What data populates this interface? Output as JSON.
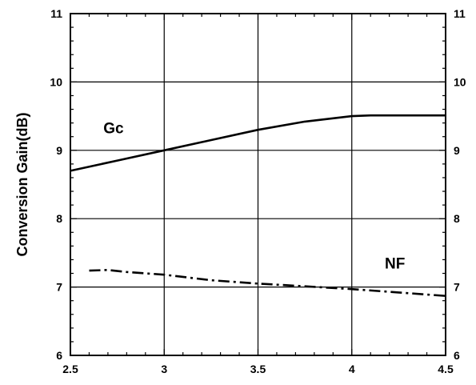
{
  "chart_data": {
    "type": "line",
    "title": "",
    "xlabel": "",
    "ylabel": "Conversion Gain(dB)",
    "xlim": [
      2.5,
      4.5
    ],
    "ylim": [
      6,
      11
    ],
    "xticks": [
      2.5,
      3,
      3.5,
      4,
      4.5
    ],
    "xtick_labels": [
      "2.5",
      "3",
      "3.5",
      "4",
      "4.5"
    ],
    "yticks": [
      6,
      7,
      8,
      9,
      10,
      11
    ],
    "ytick_labels": [
      "6",
      "7",
      "8",
      "9",
      "10",
      "11"
    ],
    "right_ytick_labels": [
      "6",
      "7",
      "8",
      "9",
      "10",
      "11"
    ],
    "grid": true,
    "series": [
      {
        "name": "Gc",
        "line_style": "solid",
        "color": "#000000",
        "x": [
          2.5,
          2.75,
          3.0,
          3.25,
          3.5,
          3.75,
          4.0,
          4.1,
          4.5
        ],
        "y": [
          8.7,
          8.85,
          9.0,
          9.15,
          9.3,
          9.42,
          9.5,
          9.51,
          9.51
        ]
      },
      {
        "name": "NF",
        "line_style": "dash-dot",
        "color": "#000000",
        "x": [
          2.6,
          2.7,
          2.8,
          3.0,
          3.25,
          3.5,
          3.75,
          4.0,
          4.25,
          4.5
        ],
        "y": [
          7.24,
          7.25,
          7.22,
          7.18,
          7.1,
          7.05,
          7.01,
          6.97,
          6.92,
          6.87
        ]
      }
    ],
    "annotations": [
      {
        "text": "Gc",
        "x": 2.73,
        "y": 9.25
      },
      {
        "text": "NF",
        "x": 4.23,
        "y": 7.27
      }
    ]
  }
}
